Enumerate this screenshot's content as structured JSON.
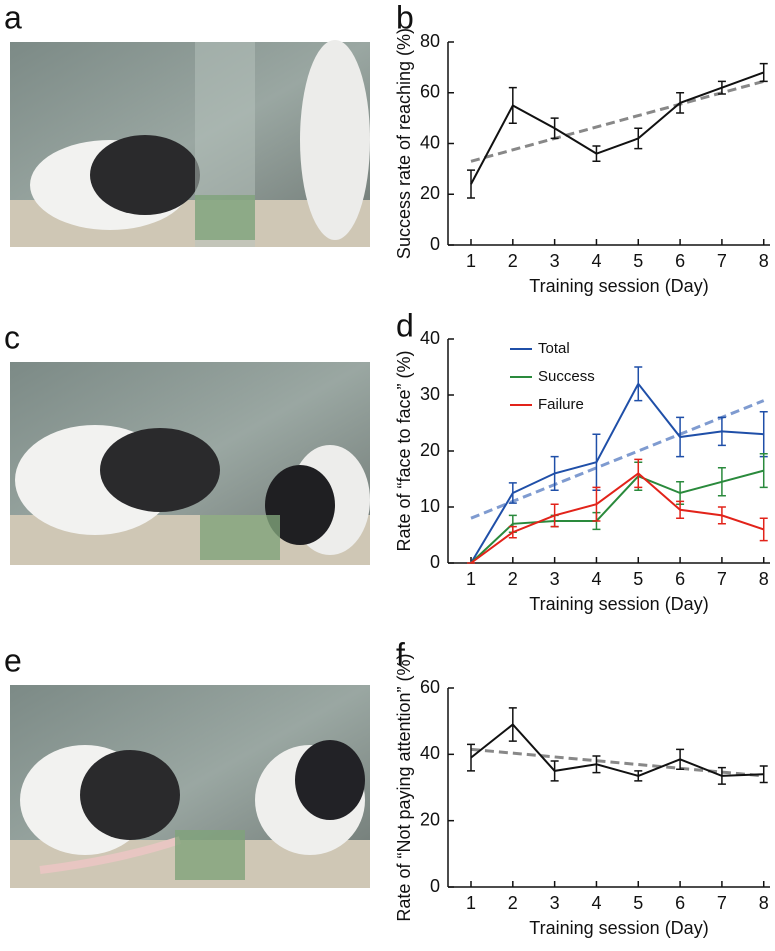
{
  "photo_panels": [
    {
      "label": "a"
    },
    {
      "label": "c"
    },
    {
      "label": "e"
    }
  ],
  "chart_data": [
    {
      "type": "line",
      "panel": "b",
      "xlabel": "Training session (Day)",
      "ylabel": "Success rate of reaching (%)",
      "x": [
        1,
        2,
        3,
        4,
        5,
        6,
        7,
        8
      ],
      "xlim": [
        0.45,
        8.15
      ],
      "xticks": [
        1,
        2,
        3,
        4,
        5,
        6,
        7,
        8
      ],
      "ylim": [
        0,
        80
      ],
      "yticks": [
        0,
        20,
        40,
        60,
        80
      ],
      "series": [
        {
          "color": "#111111",
          "values": [
            24,
            55,
            46,
            36,
            42,
            56,
            62,
            68
          ],
          "errors": [
            5.5,
            7,
            4,
            3,
            4,
            4,
            2.5,
            3.5
          ]
        }
      ],
      "trend": {
        "color": "#888888",
        "x": [
          1,
          8
        ],
        "values": [
          33,
          64.5
        ]
      }
    },
    {
      "type": "line",
      "panel": "d",
      "xlabel": "Training session (Day)",
      "ylabel": "Rate of “face to face” (%)",
      "x": [
        1,
        2,
        3,
        4,
        5,
        6,
        7,
        8
      ],
      "xlim": [
        0.45,
        8.15
      ],
      "xticks": [
        1,
        2,
        3,
        4,
        5,
        6,
        7,
        8
      ],
      "ylim": [
        0,
        40
      ],
      "yticks": [
        0,
        10,
        20,
        30,
        40
      ],
      "legend": "upper left",
      "series": [
        {
          "name": "Total",
          "color": "#1f4fa8",
          "values": [
            0,
            12.5,
            16,
            18,
            32,
            22.5,
            23.5,
            23
          ],
          "errors": [
            0,
            1.8,
            3,
            5,
            3,
            3.5,
            2.5,
            4
          ]
        },
        {
          "name": "Success",
          "color": "#2a8a3c",
          "values": [
            0,
            7,
            7.5,
            7.5,
            15.5,
            12.5,
            14.5,
            16.5
          ],
          "errors": [
            0,
            1.5,
            1,
            1.5,
            2.5,
            2,
            2.5,
            3
          ]
        },
        {
          "name": "Failure",
          "color": "#e2231a",
          "values": [
            0,
            5.5,
            8.5,
            10.5,
            16,
            9.5,
            8.5,
            6
          ],
          "errors": [
            0,
            1,
            2,
            3,
            2.5,
            1.5,
            1.5,
            2
          ]
        }
      ],
      "trend": {
        "color": "#7f9bd0",
        "x": [
          1,
          8
        ],
        "values": [
          8,
          29
        ]
      }
    },
    {
      "type": "line",
      "panel": "f",
      "xlabel": "Training session (Day)",
      "ylabel": "Rate of “Not paying attention” (%)",
      "x": [
        1,
        2,
        3,
        4,
        5,
        6,
        7,
        8
      ],
      "xlim": [
        0.45,
        8.15
      ],
      "xticks": [
        1,
        2,
        3,
        4,
        5,
        6,
        7,
        8
      ],
      "ylim": [
        0,
        60
      ],
      "yticks": [
        0,
        20,
        40,
        60
      ],
      "series": [
        {
          "color": "#111111",
          "values": [
            39,
            49,
            35,
            37,
            33.5,
            38.5,
            33.5,
            34
          ],
          "errors": [
            4,
            5,
            3,
            2.5,
            1.5,
            3,
            2.5,
            2.5
          ]
        }
      ],
      "trend": {
        "color": "#888888",
        "x": [
          1,
          8
        ],
        "values": [
          41.5,
          33.5
        ]
      }
    }
  ]
}
